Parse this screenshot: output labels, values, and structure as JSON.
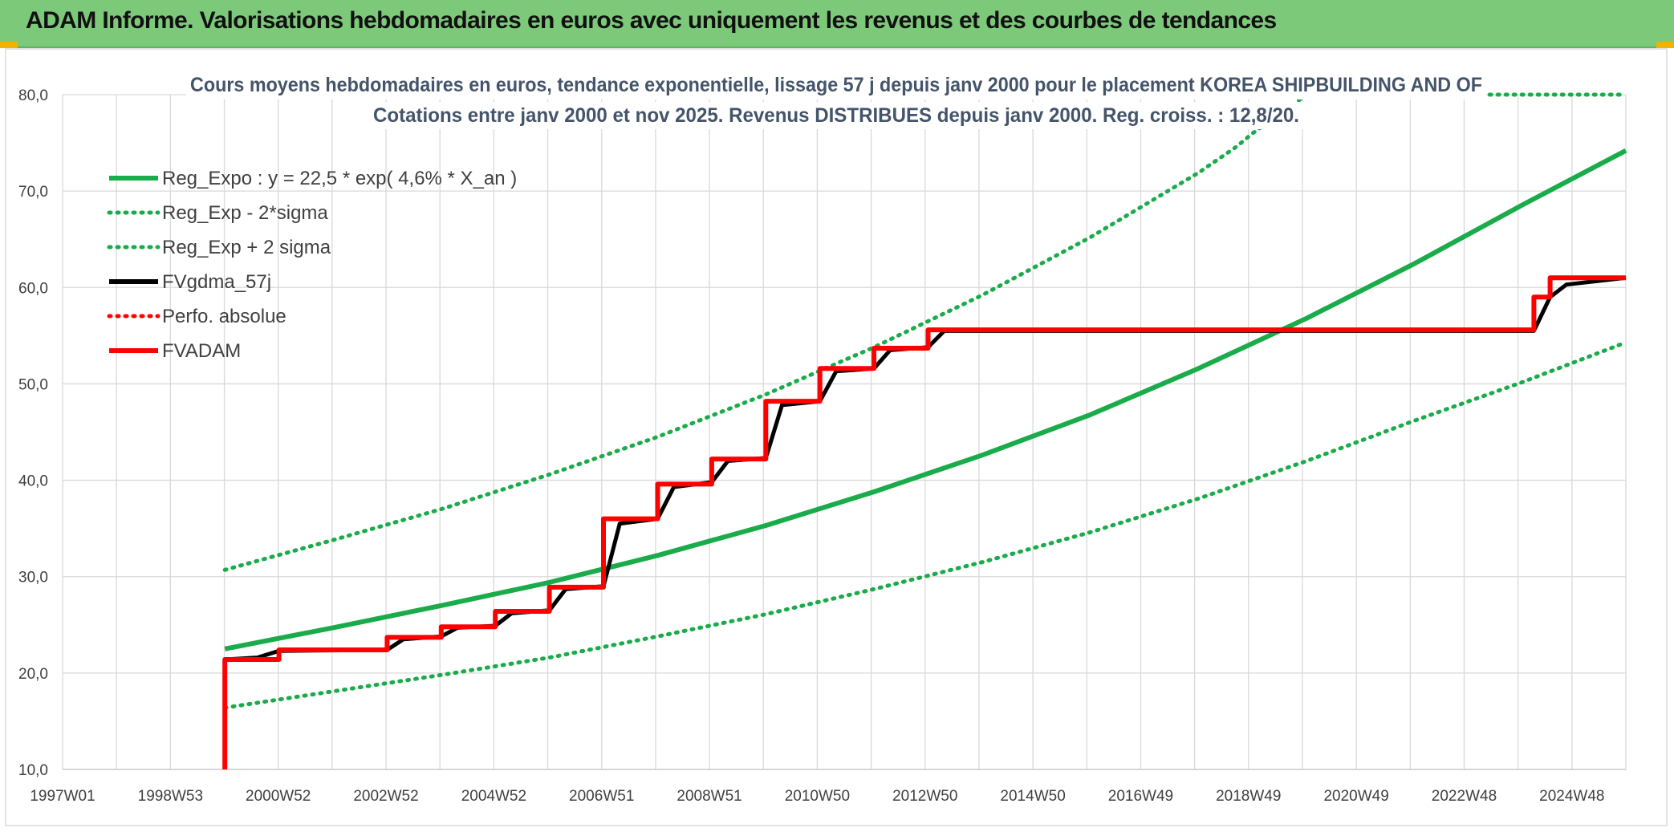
{
  "banner": {
    "title": "ADAM Informe. Valorisations hebdomadaires en euros avec uniquement les revenus et des courbes de tendances"
  },
  "colors": {
    "banner_bg": "#7dc97a",
    "reg_green": "#1aab4a",
    "fv_black": "#000000",
    "adam_red": "#ff0000",
    "grid": "#d9d9d9",
    "title_text": "#44546a"
  },
  "chart_data": {
    "type": "line",
    "title": "Cours moyens hebdomadaires en euros, tendance exponentielle, lissage 57 j depuis janv 2000 pour le placement KOREA SHIPBUILDING AND OF",
    "subtitle": "Cotations entre janv 2000 et nov 2025. Revenus DISTRIBUES depuis janv 2000. Reg. croiss. : 12,8/20.",
    "xlabel": "",
    "ylabel": "",
    "x_tick_labels": [
      "1997W01",
      "1998W53",
      "2000W52",
      "2002W52",
      "2004W52",
      "2006W51",
      "2008W51",
      "2010W50",
      "2012W50",
      "2014W50",
      "2016W49",
      "2018W49",
      "2020W49",
      "2022W48",
      "2024W48"
    ],
    "x_range": [
      1997.0,
      2025.9
    ],
    "y_range": [
      10,
      80
    ],
    "y_tick_labels": [
      "10,0",
      "20,0",
      "30,0",
      "40,0",
      "50,0",
      "60,0",
      "70,0",
      "80,0"
    ],
    "grid": true,
    "legend_position": "top-left",
    "series": [
      {
        "name": "Reg_Expo : y = 22,5 * exp( 4,6% *  X_an )",
        "style": "solid",
        "color": "#1aab4a",
        "points": [
          [
            2000.0,
            22.5
          ],
          [
            2002.0,
            24.7
          ],
          [
            2004.0,
            27.0
          ],
          [
            2006.0,
            29.4
          ],
          [
            2008.0,
            32.2
          ],
          [
            2010.0,
            35.3
          ],
          [
            2012.0,
            38.8
          ],
          [
            2014.0,
            42.6
          ],
          [
            2016.0,
            46.8
          ],
          [
            2018.0,
            51.6
          ],
          [
            2020.0,
            56.8
          ],
          [
            2022.0,
            62.5
          ],
          [
            2024.0,
            68.6
          ],
          [
            2025.9,
            74.2
          ]
        ]
      },
      {
        "name": "Reg_Exp - 2*sigma",
        "style": "dotted",
        "color": "#1aab4a",
        "points": [
          [
            2000.0,
            16.4
          ],
          [
            2002.0,
            18.1
          ],
          [
            2004.0,
            19.8
          ],
          [
            2006.0,
            21.6
          ],
          [
            2008.0,
            23.8
          ],
          [
            2010.0,
            26.1
          ],
          [
            2012.0,
            28.7
          ],
          [
            2014.0,
            31.5
          ],
          [
            2016.0,
            34.6
          ],
          [
            2018.0,
            38.1
          ],
          [
            2020.0,
            42.0
          ],
          [
            2022.0,
            46.2
          ],
          [
            2024.0,
            50.2
          ],
          [
            2025.9,
            54.3
          ]
        ]
      },
      {
        "name": "Reg_Exp + 2 sigma",
        "style": "dotted",
        "color": "#1aab4a",
        "points": [
          [
            2000.0,
            30.7
          ],
          [
            2002.0,
            33.8
          ],
          [
            2004.0,
            37.0
          ],
          [
            2006.0,
            40.6
          ],
          [
            2008.0,
            44.5
          ],
          [
            2010.0,
            48.9
          ],
          [
            2012.0,
            53.8
          ],
          [
            2014.0,
            59.2
          ],
          [
            2016.0,
            65.2
          ],
          [
            2018.0,
            71.9
          ],
          [
            2018.7,
            74.6
          ],
          [
            2019.0,
            76.0
          ],
          [
            2020.0,
            80.0
          ],
          [
            2025.9,
            80.0
          ]
        ]
      },
      {
        "name": "FVgdma_57j",
        "style": "solid",
        "color": "#000000",
        "points": [
          [
            2000.0,
            21.4
          ],
          [
            2000.6,
            21.6
          ],
          [
            2001.0,
            22.3
          ],
          [
            2003.0,
            22.4
          ],
          [
            2003.3,
            23.5
          ],
          [
            2004.0,
            23.8
          ],
          [
            2004.3,
            24.7
          ],
          [
            2005.0,
            24.9
          ],
          [
            2005.3,
            26.2
          ],
          [
            2006.0,
            26.5
          ],
          [
            2006.3,
            28.7
          ],
          [
            2007.0,
            29.0
          ],
          [
            2007.3,
            35.5
          ],
          [
            2008.0,
            36.0
          ],
          [
            2008.3,
            39.3
          ],
          [
            2009.0,
            39.8
          ],
          [
            2009.3,
            42.0
          ],
          [
            2010.0,
            42.3
          ],
          [
            2010.3,
            47.8
          ],
          [
            2011.0,
            48.2
          ],
          [
            2011.3,
            51.3
          ],
          [
            2012.0,
            51.6
          ],
          [
            2012.3,
            53.5
          ],
          [
            2013.0,
            53.8
          ],
          [
            2013.3,
            55.5
          ],
          [
            2024.2,
            55.5
          ],
          [
            2024.5,
            59.0
          ],
          [
            2024.8,
            60.3
          ],
          [
            2025.9,
            61.0
          ]
        ]
      },
      {
        "name": "Perfo. absolue",
        "style": "dotted",
        "color": "#ff0000",
        "points": []
      },
      {
        "name": "FVADAM",
        "style": "solid",
        "color": "#ff0000",
        "points": [
          [
            2000.0,
            10.0
          ],
          [
            2000.0,
            21.4
          ],
          [
            2001.0,
            21.4
          ],
          [
            2001.0,
            22.4
          ],
          [
            2003.0,
            22.4
          ],
          [
            2003.0,
            23.7
          ],
          [
            2004.0,
            23.7
          ],
          [
            2004.0,
            24.8
          ],
          [
            2005.0,
            24.8
          ],
          [
            2005.0,
            26.4
          ],
          [
            2006.0,
            26.4
          ],
          [
            2006.0,
            28.9
          ],
          [
            2007.0,
            28.9
          ],
          [
            2007.0,
            36.0
          ],
          [
            2008.0,
            36.0
          ],
          [
            2008.0,
            39.6
          ],
          [
            2009.0,
            39.6
          ],
          [
            2009.0,
            42.2
          ],
          [
            2010.0,
            42.2
          ],
          [
            2010.0,
            48.2
          ],
          [
            2011.0,
            48.2
          ],
          [
            2011.0,
            51.6
          ],
          [
            2012.0,
            51.6
          ],
          [
            2012.0,
            53.7
          ],
          [
            2013.0,
            53.7
          ],
          [
            2013.0,
            55.6
          ],
          [
            2024.2,
            55.6
          ],
          [
            2024.2,
            59.0
          ],
          [
            2024.5,
            59.0
          ],
          [
            2024.5,
            61.0
          ],
          [
            2025.9,
            61.0
          ]
        ]
      }
    ]
  }
}
